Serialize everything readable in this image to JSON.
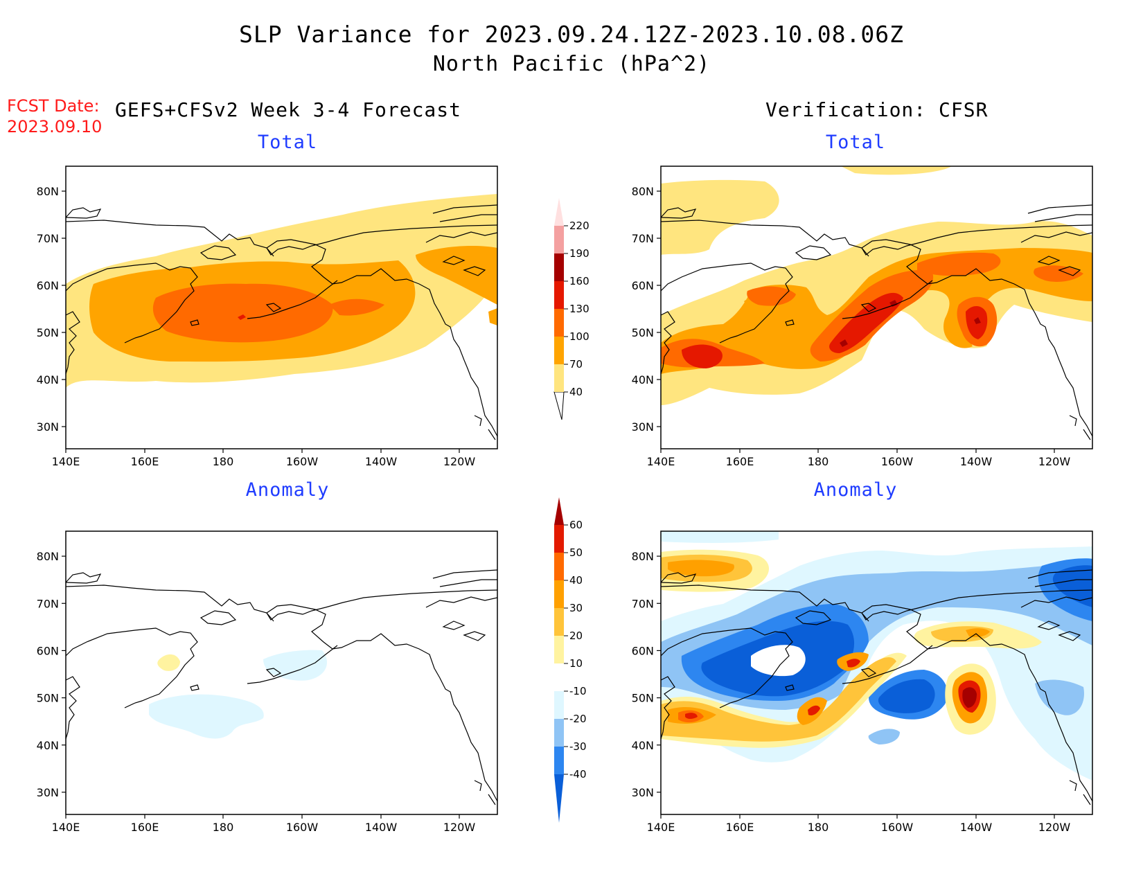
{
  "title": "SLP Variance for 2023.09.24.12Z-2023.10.08.06Z",
  "subtitle": "North Pacific (hPa^2)",
  "fcst_label": "FCST Date:",
  "fcst_date": "2023.09.10",
  "left_header": "GEFS+CFSv2 Week 3-4 Forecast",
  "right_header": "Verification: CFSR",
  "panels": {
    "forecast_total": {
      "title": "Total"
    },
    "verif_total": {
      "title": "Total"
    },
    "forecast_anomaly": {
      "title": "Anomaly"
    },
    "verif_anomaly": {
      "title": "Anomaly"
    }
  },
  "chart_data": {
    "type": "heatmap",
    "lat_ticks": [
      "80N",
      "70N",
      "60N",
      "50N",
      "40N",
      "30N"
    ],
    "lon_ticks": [
      "140E",
      "160E",
      "180",
      "160W",
      "140W",
      "120W"
    ],
    "total_colorbar": {
      "labels": [
        "40",
        "70",
        "100",
        "130",
        "160",
        "190",
        "220"
      ],
      "colors": [
        "#ffe57f",
        "#ffa400",
        "#ff6a00",
        "#e51800",
        "#a50000",
        "#f4a0a0",
        "#ffe0e0"
      ]
    },
    "anomaly_colorbar": {
      "labels": [
        "-40",
        "-30",
        "-20",
        "-10",
        "10",
        "20",
        "30",
        "40",
        "50",
        "60"
      ],
      "colors": [
        "#0a5fd8",
        "#2d86f0",
        "#8fc4f5",
        "#dff7ff",
        "#ffffff",
        "#fff3a0",
        "#ffc43a",
        "#ffa000",
        "#ff6a00",
        "#e31a00",
        "#a50000"
      ]
    },
    "level_colors": {
      "t1": "#ffe57f",
      "t2": "#ffa400",
      "t3": "#ff6a00",
      "t4": "#e51800",
      "t5": "#a50000",
      "n1": "#dff7ff",
      "n2": "#8fc4f5",
      "n3": "#2d86f0",
      "n4": "#0a5fd8",
      "p1": "#fff3a0",
      "p2": "#ffc43a",
      "p3": "#ffa000",
      "p4": "#ff6a00",
      "p5": "#e31a00",
      "p6": "#a50000"
    }
  }
}
